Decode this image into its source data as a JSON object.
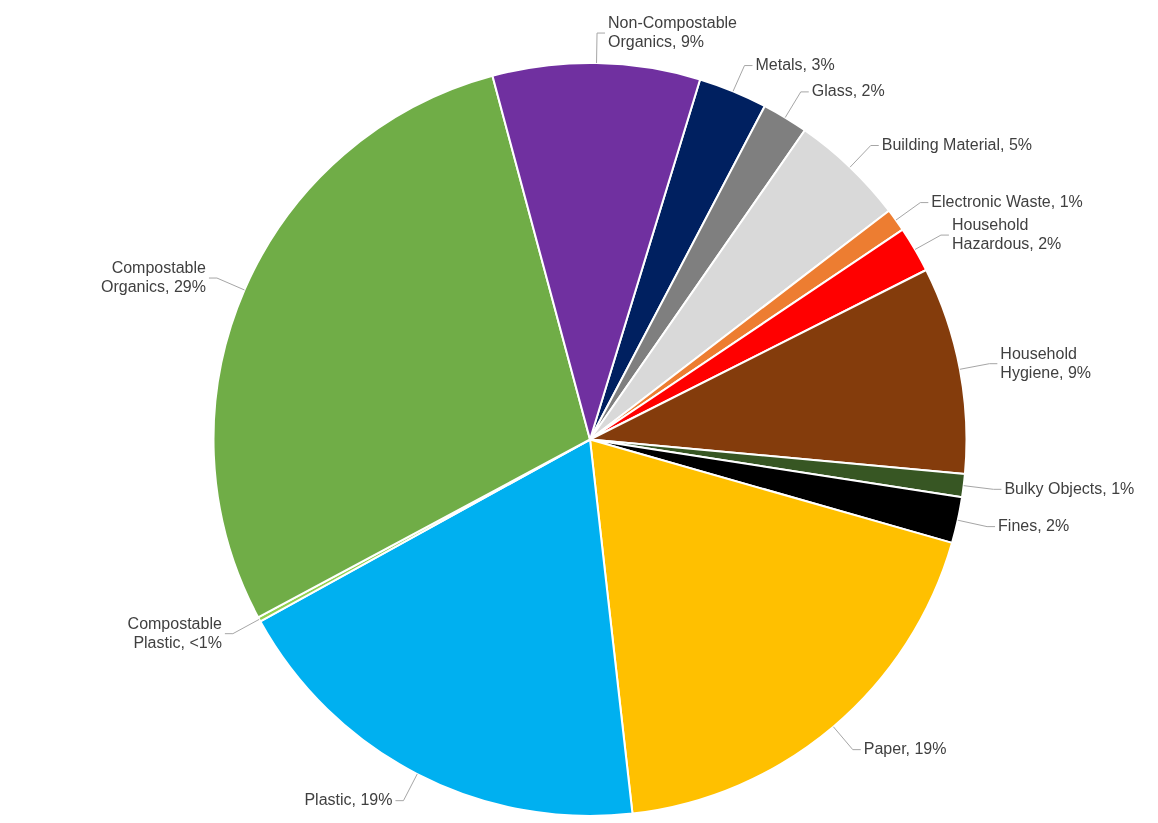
{
  "chart_data": {
    "type": "pie",
    "categories": [
      "Metals",
      "Glass",
      "Building Material",
      "Electronic Waste",
      "Household Hazardous",
      "Household Hygiene",
      "Bulky Objects",
      "Fines",
      "Paper",
      "Plastic",
      "Compostable Plastic",
      "Compostable Organics",
      "Non-Compostable Organics"
    ],
    "values": [
      3,
      2,
      5,
      1,
      2,
      9,
      1,
      2,
      19,
      19,
      0.2,
      29,
      9
    ],
    "value_labels": [
      "3%",
      "2%",
      "5%",
      "1%",
      "2%",
      "9%",
      "1%",
      "2%",
      "19%",
      "19%",
      "<1%",
      "29%",
      "9%"
    ],
    "colors": [
      "#002060",
      "#7f7f7f",
      "#d9d9d9",
      "#ed7d31",
      "#ff0000",
      "#843c0c",
      "#375623",
      "#000000",
      "#ffc000",
      "#00b0f0",
      "#92d050",
      "#70ad47",
      "#7030a0"
    ]
  }
}
